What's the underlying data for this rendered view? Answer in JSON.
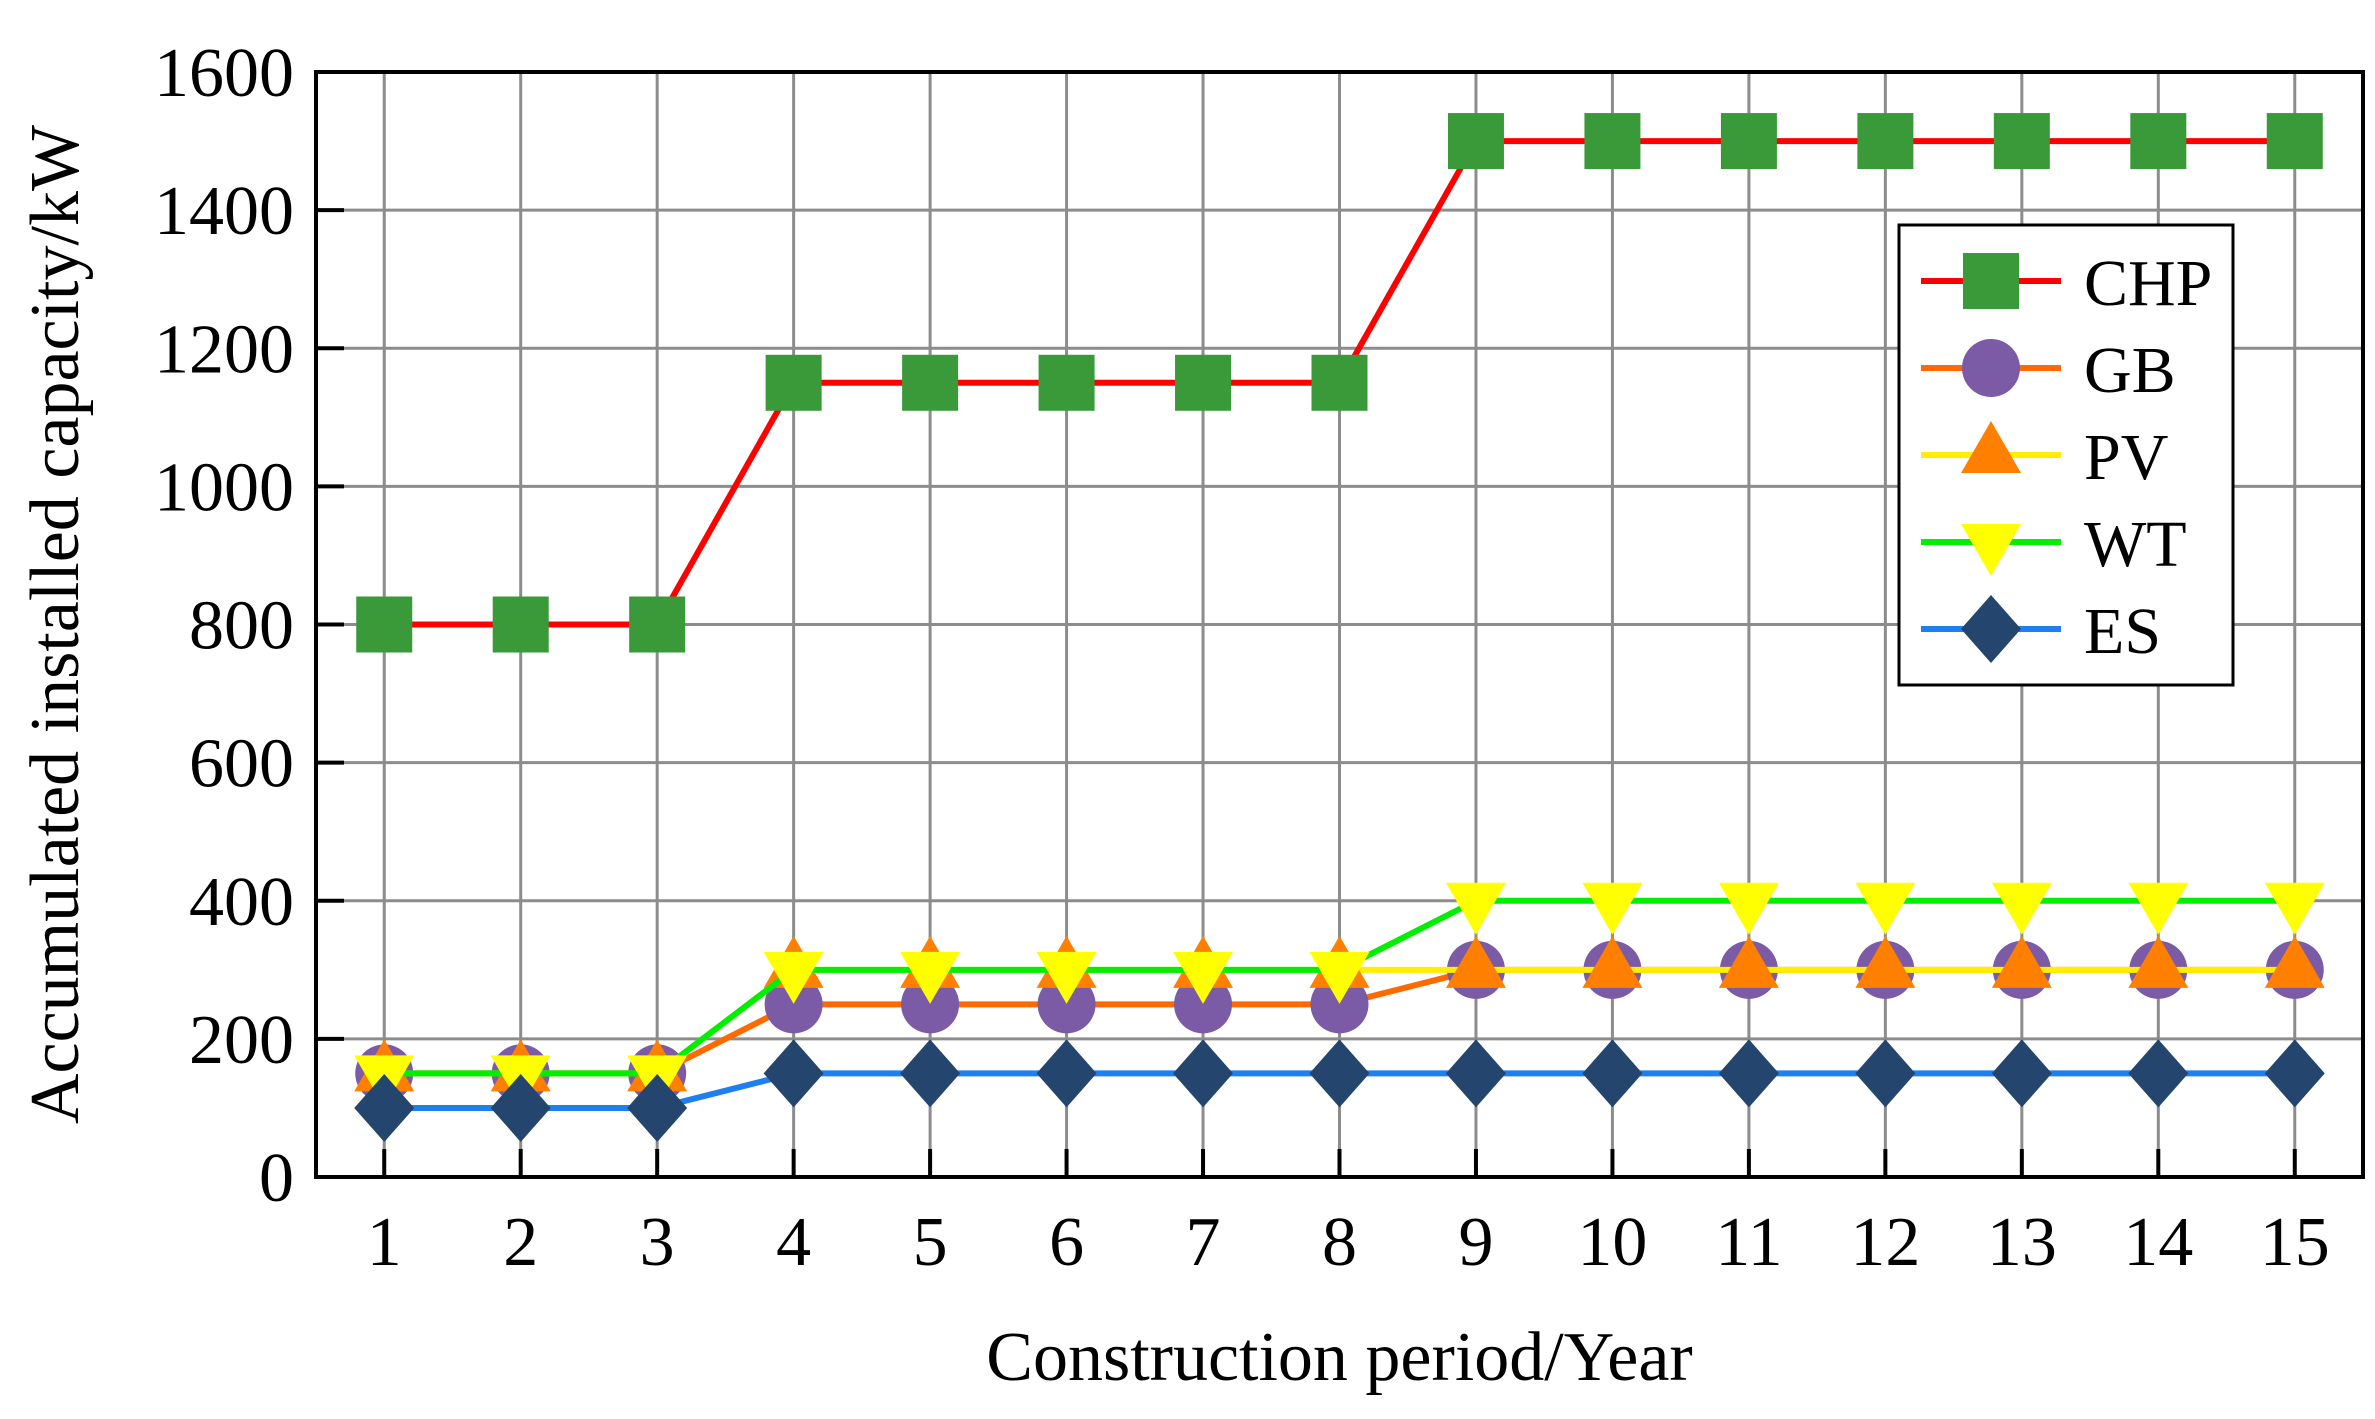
{
  "chart_data": {
    "type": "line",
    "xlabel": "Construction period/Year",
    "ylabel": "Accumulated installed capacity/kW",
    "x": [
      1,
      2,
      3,
      4,
      5,
      6,
      7,
      8,
      9,
      10,
      11,
      12,
      13,
      14,
      15
    ],
    "xlim": [
      0.5,
      15.5
    ],
    "ylim": [
      0,
      1600
    ],
    "yticks": [
      0,
      200,
      400,
      600,
      800,
      1000,
      1200,
      1400,
      1600
    ],
    "grid": true,
    "legend_position": "top-right",
    "series": [
      {
        "name": "CHP",
        "line_color": "#ff0000",
        "marker": "square",
        "marker_color": "#3a9a3a",
        "values": [
          800,
          800,
          800,
          1150,
          1150,
          1150,
          1150,
          1150,
          1500,
          1500,
          1500,
          1500,
          1500,
          1500,
          1500
        ]
      },
      {
        "name": "GB",
        "line_color": "#ff6a00",
        "marker": "circle",
        "marker_color": "#7b5aa6",
        "values": [
          150,
          150,
          150,
          250,
          250,
          250,
          250,
          250,
          300,
          300,
          300,
          300,
          300,
          300,
          300
        ]
      },
      {
        "name": "PV",
        "line_color": "#ffee00",
        "marker": "triangle-up",
        "marker_color": "#ff7f00",
        "values": [
          150,
          150,
          150,
          300,
          300,
          300,
          300,
          300,
          300,
          300,
          300,
          300,
          300,
          300,
          300
        ]
      },
      {
        "name": "WT",
        "line_color": "#00ee00",
        "marker": "triangle-down",
        "marker_color": "#ffff00",
        "values": [
          150,
          150,
          150,
          300,
          300,
          300,
          300,
          300,
          400,
          400,
          400,
          400,
          400,
          400,
          400
        ]
      },
      {
        "name": "ES",
        "line_color": "#1e7ff0",
        "marker": "diamond",
        "marker_color": "#23456e",
        "values": [
          100,
          100,
          100,
          150,
          150,
          150,
          150,
          150,
          150,
          150,
          150,
          150,
          150,
          150,
          150
        ]
      }
    ]
  }
}
